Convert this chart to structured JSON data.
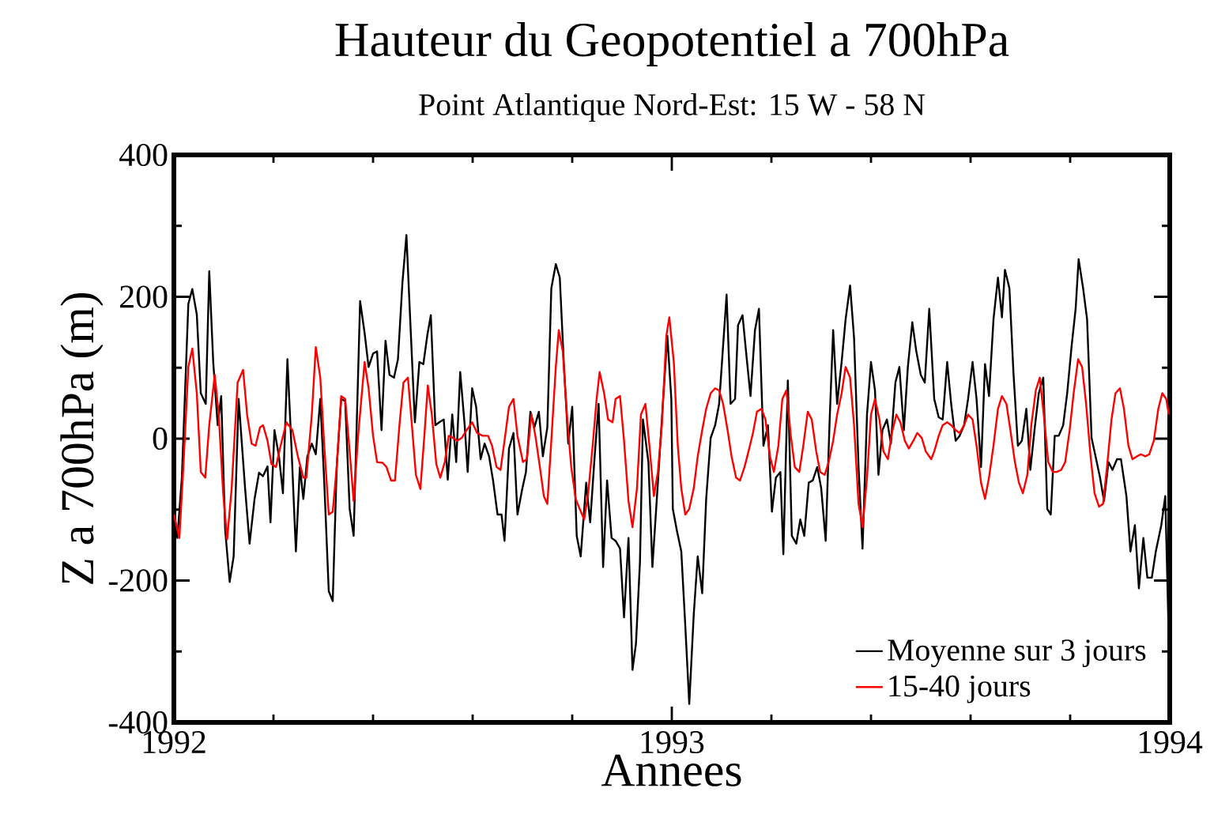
{
  "chart_data": {
    "type": "line",
    "title": "Hauteur du Geopotentiel a 700hPa",
    "subtitle": "Point Atlantique Nord-Est: 15 W - 58 N",
    "xlabel": "Annees",
    "ylabel": "Z a 700hPa (m)",
    "xlim": [
      1992,
      1994
    ],
    "ylim": [
      -400,
      400
    ],
    "xticks": [
      1992,
      {
        "value": 1992.2,
        "label": null
      },
      {
        "value": 1992.4,
        "label": null
      },
      {
        "value": 1992.6,
        "label": null
      },
      {
        "value": 1992.8,
        "label": null
      },
      1993,
      {
        "value": 1993.2,
        "label": null
      },
      {
        "value": 1993.4,
        "label": null
      },
      {
        "value": 1993.6,
        "label": null
      },
      {
        "value": 1993.8,
        "label": null
      },
      1994
    ],
    "yticks": [
      -400,
      {
        "value": -300,
        "label": null
      },
      -200,
      {
        "value": -100,
        "label": null
      },
      0,
      {
        "value": 100,
        "label": null
      },
      200,
      {
        "value": 300,
        "label": null
      },
      400
    ],
    "legend": "bottom right",
    "marker": "none",
    "line_style": "solid",
    "series": [
      {
        "name": "Moyenne sur 3 jours",
        "color": "#000000",
        "x": [
          1992.0,
          1992.007,
          1992.016,
          1992.029,
          1992.037,
          1992.046,
          1992.054,
          1992.064,
          1992.071,
          1992.079,
          1992.088,
          1992.095,
          1992.103,
          1992.112,
          1992.12,
          1992.13,
          1992.143,
          1992.152,
          1992.162,
          1992.171,
          1992.179,
          1992.188,
          1992.194,
          1992.202,
          1992.211,
          1992.219,
          1992.228,
          1992.236,
          1992.245,
          1992.253,
          1992.26,
          1992.268,
          1992.277,
          1992.285,
          1992.294,
          1992.302,
          1992.311,
          1992.319,
          1992.327,
          1992.336,
          1992.344,
          1992.353,
          1992.361,
          1992.374,
          1992.383,
          1992.391,
          1992.4,
          1992.408,
          1992.417,
          1992.425,
          1992.433,
          1992.442,
          1992.45,
          1992.459,
          1992.467,
          1992.476,
          1992.484,
          1992.493,
          1992.501,
          1992.509,
          1992.516,
          1992.525,
          1992.533,
          1992.542,
          1992.55,
          1992.559,
          1992.567,
          1992.575,
          1992.584,
          1992.59,
          1992.599,
          1992.607,
          1992.616,
          1992.624,
          1992.633,
          1992.641,
          1992.65,
          1992.658,
          1992.664,
          1992.673,
          1992.682,
          1992.69,
          1992.699,
          1992.707,
          1992.716,
          1992.724,
          1992.733,
          1992.741,
          1992.75,
          1992.758,
          1992.767,
          1992.775,
          1992.783,
          1992.792,
          1992.8,
          1992.809,
          1992.817,
          1992.828,
          1992.836,
          1992.845,
          1992.853,
          1992.862,
          1992.87,
          1992.879,
          1992.887,
          1992.896,
          1992.904,
          1992.913,
          1992.921,
          1992.928,
          1992.936,
          1992.942,
          1992.953,
          1992.961,
          1992.972,
          1992.982,
          1992.991,
          1992.999,
          1993.002,
          1993.01,
          1993.019,
          1993.027,
          1993.035,
          1993.044,
          1993.052,
          1993.061,
          1993.069,
          1993.078,
          1993.087,
          1993.095,
          1993.103,
          1993.11,
          1993.118,
          1993.127,
          1993.133,
          1993.142,
          1993.15,
          1993.158,
          1993.167,
          1993.175,
          1993.184,
          1993.193,
          1993.201,
          1993.209,
          1993.218,
          1993.224,
          1993.233,
          1993.241,
          1993.25,
          1993.258,
          1993.266,
          1993.275,
          1993.283,
          1993.292,
          1993.3,
          1993.309,
          1993.317,
          1993.324,
          1993.332,
          1993.341,
          1993.349,
          1993.358,
          1993.366,
          1993.375,
          1993.383,
          1993.392,
          1993.4,
          1993.408,
          1993.415,
          1993.423,
          1993.432,
          1993.44,
          1993.449,
          1993.457,
          1993.466,
          1993.474,
          1993.483,
          1993.491,
          1993.5,
          1993.508,
          1993.517,
          1993.527,
          1993.536,
          1993.544,
          1993.553,
          1993.561,
          1993.57,
          1993.578,
          1993.587,
          1993.595,
          1993.604,
          1993.612,
          1993.621,
          1993.629,
          1993.637,
          1993.646,
          1993.655,
          1993.663,
          1993.669,
          1993.678,
          1993.686,
          1993.695,
          1993.703,
          1993.712,
          1993.72,
          1993.729,
          1993.737,
          1993.746,
          1993.754,
          1993.761,
          1993.769,
          1993.777,
          1993.786,
          1993.794,
          1993.803,
          1993.811,
          1993.817,
          1993.826,
          1993.834,
          1993.843,
          1993.851,
          1993.86,
          1993.868,
          1993.877,
          1993.885,
          1993.894,
          1993.902,
          1993.913,
          1993.921,
          1993.93,
          1993.938,
          1993.947,
          1993.955,
          1993.964,
          1993.972,
          1993.983,
          1993.991,
          1993.998
        ],
        "values": [
          -114,
          -140,
          -55,
          190,
          211,
          175,
          64,
          49,
          236,
          108,
          19,
          60,
          -129,
          -202,
          -166,
          56,
          -70,
          -148,
          -85,
          -48,
          -53,
          -39,
          -118,
          12,
          -25,
          -77,
          112,
          -10,
          -159,
          -40,
          -85,
          -25,
          -7,
          -22,
          56,
          -62,
          -215,
          -229,
          -40,
          56,
          53,
          -99,
          -137,
          194,
          149,
          101,
          120,
          123,
          12,
          138,
          90,
          86,
          112,
          220,
          287,
          146,
          23,
          108,
          105,
          146,
          174,
          19,
          23,
          27,
          -58,
          34,
          -33,
          94,
          19,
          -47,
          71,
          45,
          -29,
          -7,
          -25,
          -59,
          -107,
          -107,
          -144,
          -14,
          8,
          -107,
          -73,
          -47,
          38,
          16,
          38,
          -25,
          16,
          212,
          246,
          227,
          108,
          -7,
          45,
          -137,
          -166,
          -62,
          -118,
          -25,
          49,
          -181,
          -59,
          -140,
          -144,
          -155,
          -252,
          -140,
          -326,
          -289,
          -174,
          27,
          -33,
          -181,
          -62,
          49,
          145,
          56,
          -99,
          -129,
          -159,
          -263,
          -374,
          -248,
          -166,
          -218,
          -85,
          1,
          19,
          49,
          131,
          203,
          49,
          56,
          160,
          174,
          116,
          60,
          153,
          183,
          -10,
          19,
          -103,
          -55,
          -47,
          -163,
          82,
          -137,
          -148,
          -114,
          -137,
          -62,
          -59,
          -40,
          -70,
          -144,
          27,
          153,
          49,
          108,
          168,
          216,
          142,
          -40,
          -155,
          34,
          108,
          68,
          -51,
          12,
          27,
          -7,
          79,
          101,
          12,
          101,
          164,
          123,
          90,
          79,
          183,
          56,
          30,
          27,
          108,
          49,
          -3,
          4,
          19,
          56,
          108,
          56,
          -40,
          105,
          60,
          168,
          227,
          171,
          238,
          212,
          94,
          -10,
          -3,
          42,
          -44,
          16,
          64,
          86,
          -99,
          -107,
          4,
          4,
          19,
          64,
          131,
          183,
          253,
          212,
          168,
          1,
          -25,
          -55,
          -88,
          -33,
          -44,
          -29,
          -29,
          -81,
          -159,
          -122,
          -211,
          -140,
          -196,
          -196,
          -159,
          -122,
          -81,
          -281
        ]
      },
      {
        "name": "15-40 jours",
        "color": "#ff0000",
        "x": [
          1992.0,
          1992.011,
          1992.019,
          1992.029,
          1992.037,
          1992.046,
          1992.054,
          1992.063,
          1992.071,
          1992.082,
          1992.09,
          1992.099,
          1992.107,
          1992.116,
          1992.128,
          1992.139,
          1992.147,
          1992.156,
          1992.164,
          1992.173,
          1992.179,
          1992.188,
          1992.196,
          1992.205,
          1992.213,
          1992.226,
          1992.238,
          1992.249,
          1992.26,
          1992.266,
          1992.277,
          1992.285,
          1992.294,
          1992.302,
          1992.311,
          1992.319,
          1992.327,
          1992.336,
          1992.344,
          1992.353,
          1992.361,
          1992.37,
          1992.383,
          1992.391,
          1992.4,
          1992.408,
          1992.419,
          1992.427,
          1992.436,
          1992.444,
          1992.453,
          1992.461,
          1992.47,
          1992.478,
          1992.486,
          1992.495,
          1992.503,
          1992.51,
          1992.518,
          1992.527,
          1992.535,
          1992.544,
          1992.552,
          1992.561,
          1992.569,
          1992.578,
          1992.588,
          1992.599,
          1992.609,
          1992.62,
          1992.631,
          1992.639,
          1992.648,
          1992.656,
          1992.664,
          1992.673,
          1992.682,
          1992.69,
          1992.701,
          1992.709,
          1992.718,
          1992.726,
          1992.735,
          1992.743,
          1992.75,
          1992.758,
          1992.767,
          1992.773,
          1992.781,
          1992.79,
          1992.798,
          1992.807,
          1992.815,
          1992.824,
          1992.832,
          1992.841,
          1992.849,
          1992.855,
          1992.864,
          1992.872,
          1992.881,
          1992.887,
          1992.896,
          1992.904,
          1992.913,
          1992.921,
          1992.93,
          1992.938,
          1992.947,
          1992.955,
          1992.964,
          1992.972,
          1992.98,
          1992.989,
          1992.995,
          1993.004,
          1993.012,
          1993.019,
          1993.027,
          1993.035,
          1993.044,
          1993.052,
          1993.061,
          1993.069,
          1993.078,
          1993.087,
          1993.095,
          1993.103,
          1993.112,
          1993.12,
          1993.129,
          1993.137,
          1993.146,
          1993.154,
          1993.163,
          1993.171,
          1993.18,
          1993.188,
          1993.197,
          1993.205,
          1993.214,
          1993.222,
          1993.23,
          1993.239,
          1993.247,
          1993.256,
          1993.264,
          1993.273,
          1993.281,
          1993.29,
          1993.298,
          1993.307,
          1993.315,
          1993.324,
          1993.332,
          1993.341,
          1993.349,
          1993.358,
          1993.366,
          1993.375,
          1993.383,
          1993.392,
          1993.4,
          1993.408,
          1993.417,
          1993.425,
          1993.434,
          1993.442,
          1993.451,
          1993.459,
          1993.468,
          1993.476,
          1993.485,
          1993.493,
          1993.502,
          1993.51,
          1993.521,
          1993.527,
          1993.536,
          1993.544,
          1993.553,
          1993.561,
          1993.57,
          1993.578,
          1993.587,
          1993.595,
          1993.604,
          1993.612,
          1993.621,
          1993.629,
          1993.637,
          1993.646,
          1993.655,
          1993.663,
          1993.672,
          1993.68,
          1993.689,
          1993.697,
          1993.705,
          1993.714,
          1993.722,
          1993.731,
          1993.739,
          1993.748,
          1993.756,
          1993.765,
          1993.773,
          1993.782,
          1993.79,
          1993.799,
          1993.807,
          1993.816,
          1993.824,
          1993.832,
          1993.841,
          1993.849,
          1993.858,
          1993.866,
          1993.874,
          1993.883,
          1993.891,
          1993.9,
          1993.908,
          1993.917,
          1993.925,
          1993.934,
          1993.942,
          1993.951,
          1993.959,
          1993.968,
          1993.977,
          1993.985,
          1993.993,
          1993.998
        ],
        "values": [
          -107,
          -140,
          -40,
          101,
          127,
          64,
          -47,
          -55,
          19,
          90,
          34,
          -77,
          -142,
          -70,
          79,
          97,
          34,
          -7,
          -10,
          16,
          19,
          -3,
          -36,
          -40,
          -14,
          23,
          12,
          -25,
          -55,
          -55,
          34,
          129,
          86,
          -10,
          -107,
          -103,
          -40,
          60,
          56,
          -18,
          -88,
          4,
          108,
          71,
          4,
          -33,
          -34,
          -40,
          -59,
          -59,
          19,
          79,
          86,
          19,
          -51,
          -71,
          4,
          75,
          34,
          -36,
          -55,
          -33,
          4,
          1,
          -3,
          1,
          12,
          23,
          8,
          4,
          4,
          -10,
          -40,
          -44,
          -3,
          45,
          56,
          4,
          -33,
          -29,
          34,
          4,
          -40,
          -81,
          -92,
          -3,
          101,
          153,
          123,
          27,
          -40,
          -85,
          -99,
          -114,
          -77,
          -10,
          56,
          94,
          64,
          27,
          23,
          56,
          60,
          -3,
          -88,
          -125,
          -70,
          34,
          49,
          -10,
          -81,
          -47,
          19,
          145,
          171,
          108,
          -10,
          -70,
          -107,
          -99,
          -70,
          -25,
          12,
          42,
          64,
          71,
          68,
          49,
          12,
          -25,
          -55,
          -59,
          -40,
          -18,
          8,
          38,
          42,
          27,
          -25,
          -47,
          -10,
          56,
          68,
          4,
          -40,
          -47,
          -10,
          38,
          27,
          -18,
          -47,
          -51,
          -33,
          -3,
          34,
          64,
          101,
          86,
          19,
          -92,
          -125,
          -55,
          34,
          56,
          27,
          -18,
          -29,
          8,
          34,
          23,
          -3,
          -14,
          -3,
          8,
          1,
          -18,
          -29,
          -18,
          4,
          19,
          23,
          19,
          12,
          8,
          19,
          34,
          27,
          -10,
          -62,
          -85,
          -55,
          -10,
          42,
          60,
          49,
          12,
          -33,
          -62,
          -77,
          -51,
          19,
          68,
          86,
          27,
          -33,
          -47,
          -47,
          -44,
          -33,
          12,
          64,
          112,
          101,
          49,
          -25,
          -77,
          -96,
          -92,
          -40,
          27,
          64,
          71,
          42,
          -10,
          -29,
          -25,
          -22,
          -25,
          -22,
          -3,
          42,
          64,
          56,
          34
        ]
      }
    ]
  }
}
